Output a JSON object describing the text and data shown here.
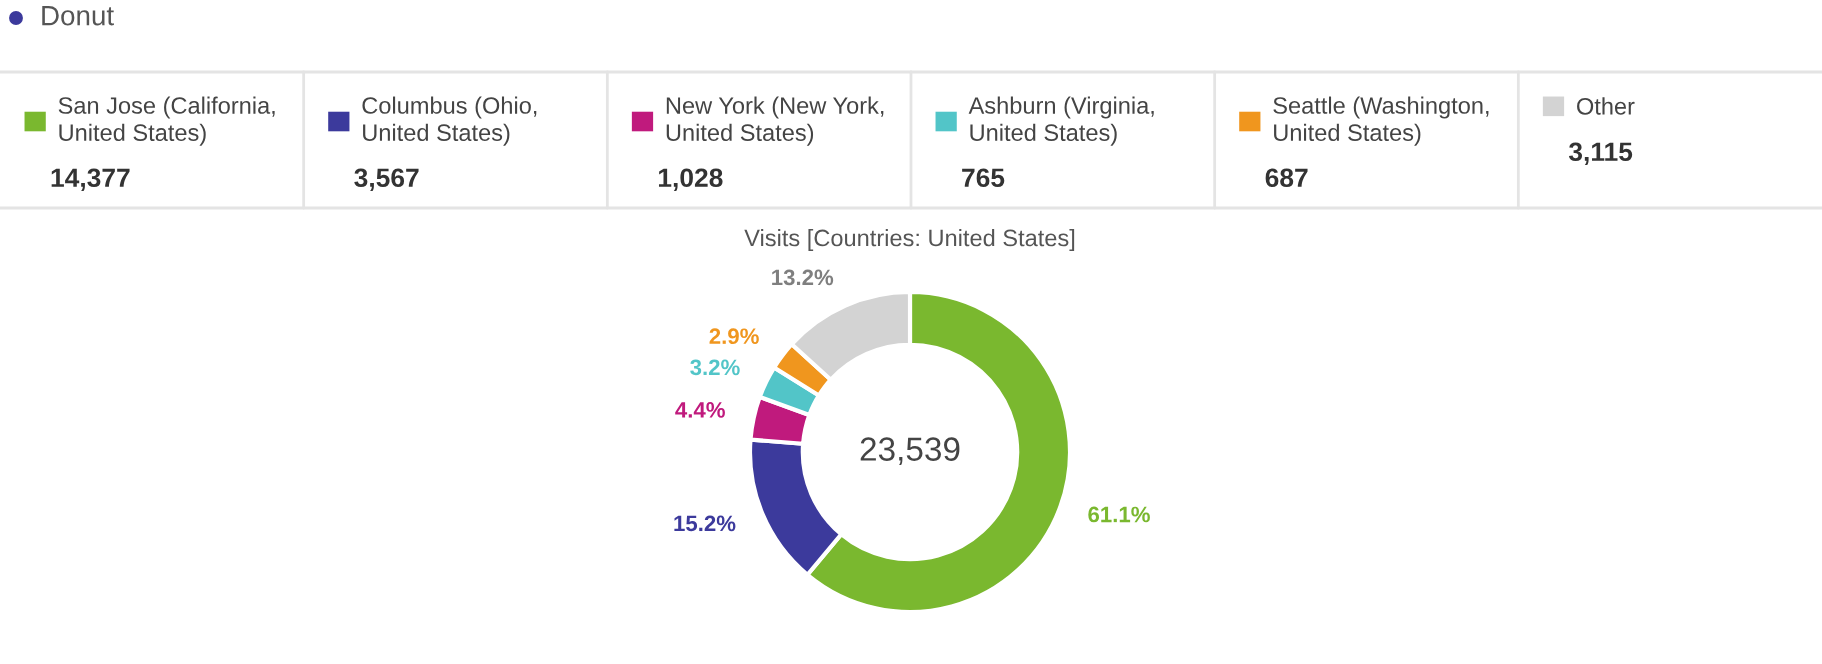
{
  "chart_data": {
    "type": "donut",
    "title": "Donut",
    "subtitle": "Visits [Countries: United States]",
    "categories": [
      "San Jose (California, United States)",
      "Columbus (Ohio, United States)",
      "New York (New York, United States)",
      "Ashburn (Virginia, United States)",
      "Seattle (Washington, United States)",
      "Other"
    ],
    "values": [
      14377,
      3567,
      1028,
      765,
      687,
      3115
    ],
    "colors": [
      "#7ab82f",
      "#3c3a9c",
      "#c01a7d",
      "#52c5c8",
      "#f0961e",
      "#d3d3d3"
    ],
    "value_labels": [
      "14,377",
      "3,567",
      "1,028",
      "765",
      "687",
      "3,115"
    ],
    "annotations": [
      "23,539",
      {
        "text": "61.1%",
        "x": "San Jose (California, United States)"
      },
      {
        "text": "15.2%",
        "x": "Columbus (Ohio, United States)"
      },
      {
        "text": "4.4%",
        "x": "New York (New York, United States)"
      },
      {
        "text": "3.2%",
        "x": "Ashburn (Virginia, United States)"
      },
      {
        "text": "2.9%",
        "x": "Seattle (Washington, United States)"
      },
      {
        "text": "13.2%",
        "x": "Other"
      }
    ],
    "legend": "top"
  }
}
